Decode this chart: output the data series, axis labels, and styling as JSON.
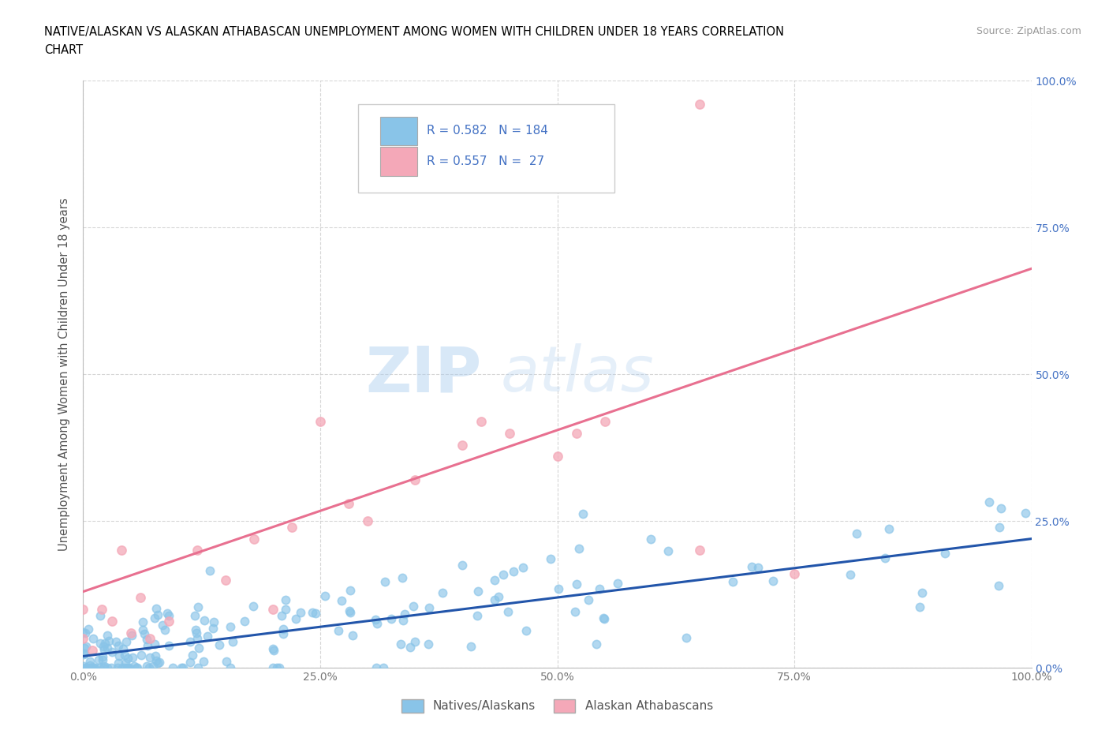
{
  "title_line1": "NATIVE/ALASKAN VS ALASKAN ATHABASCAN UNEMPLOYMENT AMONG WOMEN WITH CHILDREN UNDER 18 YEARS CORRELATION",
  "title_line2": "CHART",
  "source": "Source: ZipAtlas.com",
  "ylabel": "Unemployment Among Women with Children Under 18 years",
  "xlim": [
    0.0,
    1.0
  ],
  "ylim": [
    0.0,
    1.0
  ],
  "blue_R": 0.582,
  "blue_N": 184,
  "pink_R": 0.557,
  "pink_N": 27,
  "watermark_zip": "ZIP",
  "watermark_atlas": "atlas",
  "legend_label_blue": "Natives/Alaskans",
  "legend_label_pink": "Alaskan Athabascans",
  "background_color": "#FFFFFF",
  "blue_scatter_color": "#89C4E8",
  "pink_scatter_color": "#F4A8B8",
  "blue_line_color": "#2255AA",
  "pink_line_color": "#E87090",
  "right_tick_color": "#4472C4",
  "title_color": "#000000",
  "source_color": "#999999",
  "axis_label_color": "#555555",
  "tick_label_color": "#777777",
  "grid_color": "#CCCCCC",
  "blue_line_intercept": 0.02,
  "blue_line_slope": 0.2,
  "pink_line_intercept": 0.13,
  "pink_line_slope": 0.55
}
